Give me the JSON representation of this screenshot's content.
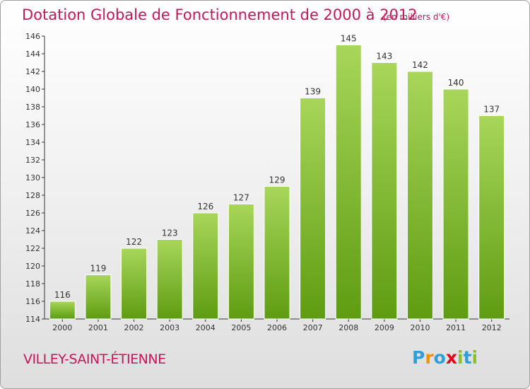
{
  "title": "Dotation Globale de Fonctionnement de 2000 à 2012",
  "subtitle": "(en milliers d'€)",
  "town": "VILLEY-SAINT-ÉTIENNE",
  "logo": {
    "letters": [
      "P",
      "r",
      "o",
      "x",
      "i",
      "t",
      "i"
    ],
    "colors": [
      "#2e9fd8",
      "#f39200",
      "#2e9fd8",
      "#e2001a",
      "#8cbf26",
      "#2e9fd8",
      "#8cbf26"
    ]
  },
  "colors": {
    "bar_top": "#a8d65a",
    "bar_bottom": "#5e9c12",
    "text": "#c2185b",
    "axis": "#333333"
  },
  "chart_data": {
    "type": "bar",
    "categories": [
      "2000",
      "2001",
      "2002",
      "2003",
      "2004",
      "2005",
      "2006",
      "2007",
      "2008",
      "2009",
      "2010",
      "2011",
      "2012"
    ],
    "values": [
      116,
      119,
      122,
      123,
      126,
      127,
      129,
      139,
      145,
      143,
      142,
      140,
      137
    ],
    "title": "Dotation Globale de Fonctionnement de 2000 à 2012",
    "subtitle": "(en milliers d'€)",
    "xlabel": "",
    "ylabel": "",
    "ylim": [
      114,
      146
    ],
    "yticks": [
      114,
      116,
      118,
      120,
      122,
      124,
      126,
      128,
      130,
      132,
      134,
      136,
      138,
      140,
      142,
      144,
      146
    ],
    "grid": false,
    "data_labels": true
  }
}
